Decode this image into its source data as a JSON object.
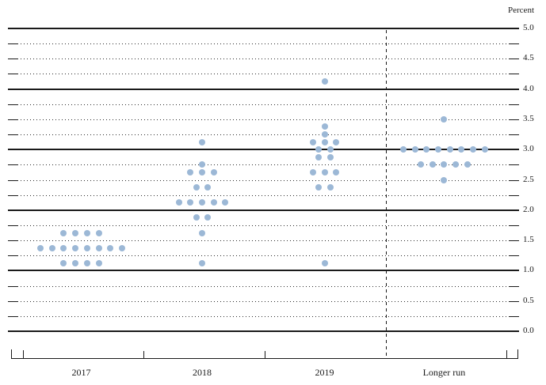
{
  "chart_data": {
    "type": "scatter",
    "subtype": "dot-plot",
    "ylabel": "Percent",
    "ylim": [
      0.0,
      5.0
    ],
    "y_tick_step_labeled": 0.5,
    "y_grid_solid_at": [
      0.0,
      1.0,
      2.0,
      3.0,
      4.0,
      5.0
    ],
    "y_grid_dotted_step": 0.25,
    "y_tick_labels": [
      "5.0",
      "4.5",
      "4.0",
      "3.5",
      "3.0",
      "2.5",
      "2.0",
      "1.5",
      "1.0",
      "0.5",
      "0.0"
    ],
    "categories": [
      "2017",
      "2018",
      "2019",
      "Longer run"
    ],
    "separator_before_category": "Longer run",
    "legend_position": "none",
    "grid": true,
    "series": [
      {
        "category": "2017",
        "dots": [
          {
            "value": 1.625,
            "count": 4
          },
          {
            "value": 1.375,
            "count": 8
          },
          {
            "value": 1.125,
            "count": 4
          }
        ]
      },
      {
        "category": "2018",
        "dots": [
          {
            "value": 3.125,
            "count": 1
          },
          {
            "value": 2.75,
            "count": 1
          },
          {
            "value": 2.625,
            "count": 3
          },
          {
            "value": 2.375,
            "count": 2
          },
          {
            "value": 2.125,
            "count": 5
          },
          {
            "value": 1.875,
            "count": 2
          },
          {
            "value": 1.625,
            "count": 1
          },
          {
            "value": 1.125,
            "count": 1
          }
        ]
      },
      {
        "category": "2019",
        "dots": [
          {
            "value": 4.125,
            "count": 1
          },
          {
            "value": 3.375,
            "count": 1
          },
          {
            "value": 3.25,
            "count": 1
          },
          {
            "value": 3.125,
            "count": 3
          },
          {
            "value": 3.0,
            "count": 2
          },
          {
            "value": 2.875,
            "count": 2
          },
          {
            "value": 2.625,
            "count": 3
          },
          {
            "value": 2.375,
            "count": 2
          },
          {
            "value": 1.125,
            "count": 1
          }
        ]
      },
      {
        "category": "Longer run",
        "dots": [
          {
            "value": 3.5,
            "count": 1
          },
          {
            "value": 3.0,
            "count": 8
          },
          {
            "value": 2.75,
            "count": 5
          },
          {
            "value": 2.5,
            "count": 1
          }
        ]
      }
    ],
    "colors": {
      "dot": "#9cb8d6",
      "line": "#1a1a1a"
    }
  }
}
